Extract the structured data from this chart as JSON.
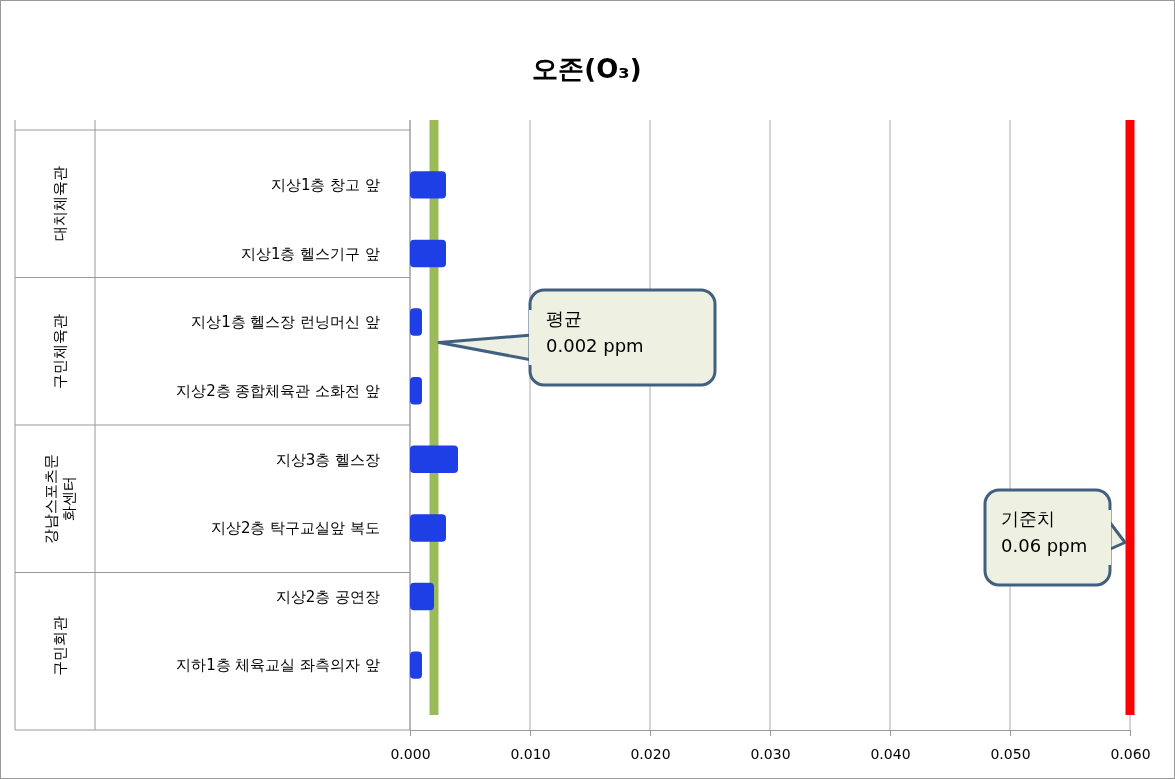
{
  "chart_data": {
    "type": "bar",
    "orientation": "horizontal",
    "title": "오존(O₃)",
    "categories": [
      "지상1층 창고 앞",
      "지상1층 헬스기구 앞",
      "지상1층 헬스장 런닝머신 앞",
      "지상2층 종합체육관 소화전 앞",
      "지상3층 헬스장",
      "지상2층 탁구교실앞 복도",
      "지상2층 공연장",
      "지하1층 체육교실 좌측의자 앞"
    ],
    "values": [
      0.003,
      0.003,
      0.001,
      0.001,
      0.004,
      0.003,
      0.002,
      0.001
    ],
    "color": "#1e3ee6",
    "xlim": [
      0,
      0.06
    ],
    "xticks": [
      {
        "value": 0,
        "label": "0.000"
      },
      {
        "value": 0.01,
        "label": "0.010"
      },
      {
        "value": 0.02,
        "label": "0.020"
      },
      {
        "value": 0.03,
        "label": "0.030"
      },
      {
        "value": 0.04,
        "label": "0.040"
      },
      {
        "value": 0.05,
        "label": "0.050"
      },
      {
        "value": 0.06,
        "label": "0.060"
      }
    ],
    "grid": "x",
    "ref_lines": [
      {
        "axis": "x",
        "value": 0.002,
        "label": "평균\n0.002 ppm",
        "color": "#9bbb59"
      },
      {
        "axis": "x",
        "value": 0.06,
        "label": "기준치\n0.06 ppm",
        "color": "#ff0000"
      }
    ],
    "annotations": [
      "대치체육관",
      "구민체육관",
      "강남스포츠문\n화센터",
      "구민회관"
    ]
  }
}
